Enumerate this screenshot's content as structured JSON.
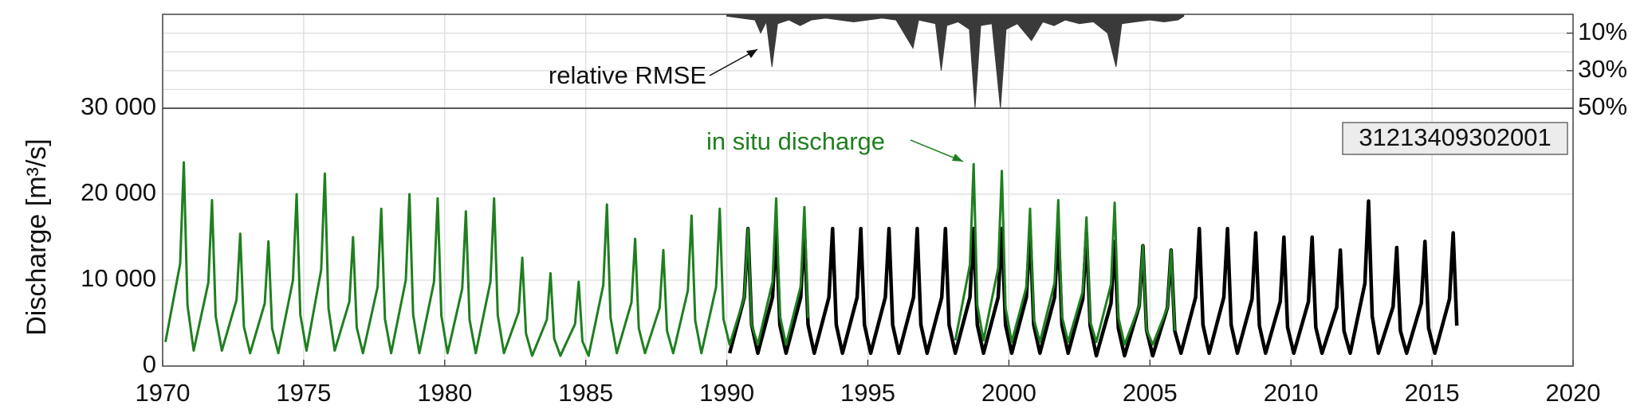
{
  "chart_data": [
    {
      "type": "area",
      "color": "#3a3a3a",
      "annotations": [
        "relative RMSE"
      ],
      "x": [
        1990.0,
        1990.5,
        1991.0,
        1991.2,
        1991.4,
        1991.6,
        1991.8,
        1992.2,
        1992.6,
        1993.0,
        1993.5,
        1994.0,
        1994.5,
        1995.0,
        1995.5,
        1996.0,
        1996.6,
        1996.8,
        1997.4,
        1997.6,
        1997.8,
        1998.2,
        1998.6,
        1998.8,
        1999.0,
        1999.4,
        1999.7,
        1999.9,
        2000.3,
        2000.8,
        2001.2,
        2001.6,
        2002.0,
        2002.5,
        2003.0,
        2003.5,
        2003.8,
        2004.0,
        2004.5,
        2005.0,
        2005.5,
        2006.0,
        2006.2
      ],
      "values": [
        1,
        2,
        3,
        10,
        4,
        28,
        5,
        3,
        6,
        3,
        2,
        3,
        4,
        3,
        2,
        3,
        18,
        3,
        5,
        30,
        6,
        4,
        8,
        50,
        6,
        5,
        50,
        8,
        5,
        14,
        4,
        6,
        3,
        5,
        4,
        10,
        28,
        5,
        4,
        3,
        4,
        3,
        1
      ],
      "y2lim": [
        0,
        50
      ],
      "inverted": true,
      "y2ticks": [
        {
          "value": 10,
          "label": "10%"
        },
        {
          "value": 30,
          "label": "30%"
        },
        {
          "value": 50,
          "label": "50%"
        }
      ],
      "y2minor": [
        20,
        40
      ]
    },
    {
      "type": "line",
      "ylabel": "Discharge [m³/s]",
      "annotations": [
        "in situ discharge"
      ],
      "station_label": "31213409302001",
      "xlim": [
        1970,
        2020
      ],
      "xticks": [
        1970,
        1975,
        1980,
        1985,
        1990,
        1995,
        2000,
        2005,
        2010,
        2015,
        2020
      ],
      "ylim": [
        0,
        30000
      ],
      "yticks": [
        0,
        {
          "value": 10000,
          "label": "10 000"
        },
        {
          "value": 20000,
          "label": "20 000"
        },
        {
          "value": 30000,
          "label": "30 000"
        }
      ],
      "grid": true,
      "series": [
        {
          "color": "#000000",
          "x": [
            1990.1,
            1990.62,
            1990.75,
            1990.88,
            1991.1,
            1991.62,
            1991.75,
            1991.88,
            1992.1,
            1992.62,
            1992.75,
            1992.88,
            1993.1,
            1993.62,
            1993.75,
            1993.88,
            1994.1,
            1994.62,
            1994.75,
            1994.88,
            1995.1,
            1995.62,
            1995.75,
            1995.88,
            1996.1,
            1996.62,
            1996.75,
            1996.88,
            1997.1,
            1997.62,
            1997.75,
            1997.88,
            1998.1,
            1998.62,
            1998.75,
            1998.88,
            1999.1,
            1999.62,
            1999.75,
            1999.88,
            2000.1,
            2000.62,
            2000.75,
            2000.88,
            2001.1,
            2001.62,
            2001.75,
            2001.88,
            2002.1,
            2002.62,
            2002.75,
            2002.88,
            2003.1,
            2003.62,
            2003.75,
            2003.88,
            2004.1,
            2004.62,
            2004.75,
            2004.88,
            2005.1,
            2005.62,
            2005.75,
            2005.88,
            2006.1,
            2006.62,
            2006.75,
            2006.88,
            2007.1,
            2007.62,
            2007.75,
            2007.88,
            2008.1,
            2008.62,
            2008.75,
            2008.88,
            2009.1,
            2009.62,
            2009.75,
            2009.88,
            2010.1,
            2010.62,
            2010.75,
            2010.88,
            2011.1,
            2011.62,
            2011.75,
            2011.88,
            2012.1,
            2012.62,
            2012.75,
            2012.88,
            2013.1,
            2013.62,
            2013.75,
            2013.88,
            2014.1,
            2014.62,
            2014.75,
            2014.88,
            2015.1,
            2015.62,
            2015.75,
            2015.88
          ],
          "values": [
            1500,
            8000,
            16000,
            4800,
            1500,
            8000,
            16000,
            4800,
            1500,
            8000,
            16000,
            4800,
            1500,
            8000,
            16000,
            4800,
            1500,
            8000,
            16000,
            4800,
            1500,
            8000,
            16000,
            4800,
            1500,
            8000,
            16000,
            4800,
            1500,
            8000,
            16000,
            4800,
            1500,
            8000,
            16000,
            4800,
            1500,
            8000,
            16000,
            4800,
            1500,
            8000,
            16000,
            4800,
            1500,
            8000,
            16000,
            4800,
            1500,
            7800,
            15500,
            4700,
            1200,
            7300,
            14500,
            4400,
            1200,
            7000,
            14000,
            4200,
            1200,
            6800,
            13500,
            4100,
            1500,
            8000,
            16000,
            4800,
            1500,
            8000,
            16000,
            4800,
            1500,
            7800,
            15500,
            4700,
            1500,
            7500,
            15000,
            4500,
            1500,
            7500,
            15000,
            4500,
            1500,
            6800,
            13500,
            4100,
            1500,
            9600,
            19200,
            5800,
            1500,
            6900,
            13800,
            4100,
            1500,
            7300,
            14500,
            4400,
            1500,
            7800,
            15500,
            4700
          ]
        },
        {
          "color": "#1f7f1f",
          "x": [
            1970.1,
            1970.62,
            1970.75,
            1970.88,
            1971.1,
            1971.62,
            1971.75,
            1971.88,
            1972.1,
            1972.62,
            1972.75,
            1972.88,
            1973.1,
            1973.62,
            1973.75,
            1973.88,
            1974.1,
            1974.62,
            1974.75,
            1974.88,
            1975.1,
            1975.62,
            1975.75,
            1975.88,
            1976.1,
            1976.62,
            1976.75,
            1976.88,
            1977.1,
            1977.62,
            1977.75,
            1977.88,
            1978.1,
            1978.62,
            1978.75,
            1978.88,
            1979.1,
            1979.62,
            1979.75,
            1979.88,
            1980.1,
            1980.62,
            1980.75,
            1980.88,
            1981.1,
            1981.62,
            1981.75,
            1981.88,
            1982.1,
            1982.62,
            1982.75,
            1982.88,
            1983.1,
            1983.62,
            1983.75,
            1983.88,
            1984.1,
            1984.62,
            1984.75,
            1984.88,
            1985.1,
            1985.62,
            1985.75,
            1985.88,
            1986.1,
            1986.62,
            1986.75,
            1986.88,
            1987.1,
            1987.62,
            1987.75,
            1987.88,
            1988.1,
            1988.62,
            1988.75,
            1988.88,
            1989.1,
            1989.62,
            1989.75,
            1989.88,
            1990.1,
            1990.62,
            1990.75,
            1990.88,
            1991.1,
            1991.62,
            1991.75,
            1991.88,
            1992.1,
            1992.62,
            1992.75,
            1992.88,
            1993.1,
            1993.62,
            1993.75,
            1993.88,
            1994.1,
            1994.62,
            1994.75,
            1994.88,
            1995.1,
            1995.62,
            1995.75,
            1995.88,
            1996.1,
            1996.62,
            1996.75,
            1996.88,
            1997.1,
            1997.62,
            1997.75,
            1997.88,
            1998.1,
            1998.62,
            1998.75,
            1998.88,
            1999.1,
            1999.62,
            1999.75,
            1999.88,
            2000.1,
            2000.62,
            2000.75,
            2000.88,
            2001.1,
            2001.62,
            2001.75,
            2001.88,
            2002.1,
            2002.62,
            2002.75,
            2002.88,
            2003.1,
            2003.62,
            2003.75,
            2003.88,
            2004.1,
            2004.62,
            2004.75,
            2004.88,
            2005.1,
            2005.62,
            2005.75,
            2005.88
          ],
          "values": [
            2800,
            11900,
            23700,
            7100,
            1800,
            9700,
            19300,
            5800,
            1800,
            7700,
            15400,
            4600,
            1500,
            7300,
            14500,
            4400,
            1500,
            10000,
            20000,
            6000,
            1800,
            11200,
            22400,
            6700,
            1800,
            7500,
            15000,
            4500,
            1500,
            9200,
            18300,
            5500,
            1500,
            10000,
            20000,
            6000,
            1500,
            9800,
            19500,
            5900,
            1500,
            9000,
            18000,
            5400,
            1500,
            9800,
            19500,
            5900,
            1500,
            6300,
            12600,
            3800,
            1200,
            5400,
            10800,
            3200,
            1200,
            4900,
            9800,
            2900,
            1200,
            9400,
            18800,
            5600,
            1500,
            7400,
            14800,
            4400,
            1500,
            6800,
            13500,
            4100,
            1500,
            8800,
            17500,
            5300,
            1500,
            9200,
            18300,
            5500,
            2500,
            8000,
            16000,
            4800,
            2500,
            9800,
            19500,
            5900,
            2500,
            9300,
            18500,
            5600,
            null,
            null,
            null,
            null,
            null,
            null,
            null,
            null,
            null,
            null,
            null,
            null,
            null,
            null,
            null,
            null,
            null,
            null,
            null,
            null,
            3000,
            11800,
            23500,
            7100,
            3000,
            11400,
            22700,
            6800,
            2800,
            9200,
            18300,
            5500,
            2800,
            9700,
            19300,
            5800,
            2800,
            8700,
            17300,
            5200,
            2800,
            9500,
            19000,
            5700,
            2500,
            7000,
            14000,
            4200,
            2500,
            6800,
            13500,
            4100
          ]
        }
      ]
    }
  ]
}
